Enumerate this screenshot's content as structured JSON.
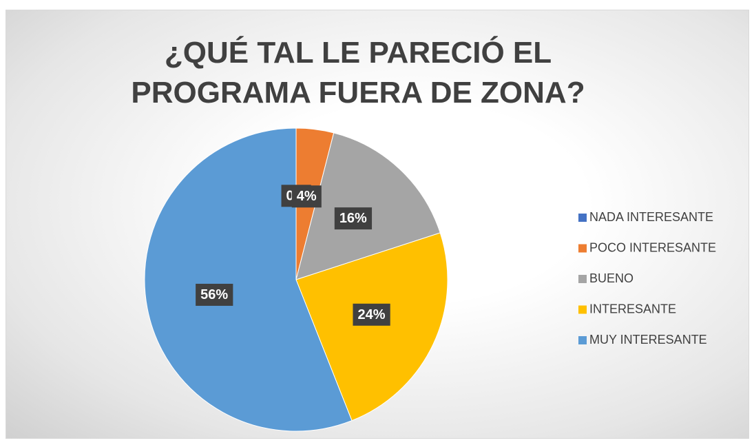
{
  "chart_data": {
    "type": "pie",
    "title": "¿QUÉ TAL LE PARECIÓ EL PROGRAMA FUERA DE ZONA?",
    "categories": [
      "NADA INTERESANTE",
      "POCO INTERESANTE",
      "BUENO",
      "INTERESANTE",
      "MUY INTERESANTE"
    ],
    "values": [
      0,
      4,
      16,
      24,
      56
    ],
    "value_labels": [
      "0%",
      "4%",
      "16%",
      "24%",
      "56%"
    ],
    "colors": [
      "#4472c4",
      "#ed7d31",
      "#a5a5a5",
      "#ffc000",
      "#5b9bd5"
    ],
    "legend": "right"
  }
}
